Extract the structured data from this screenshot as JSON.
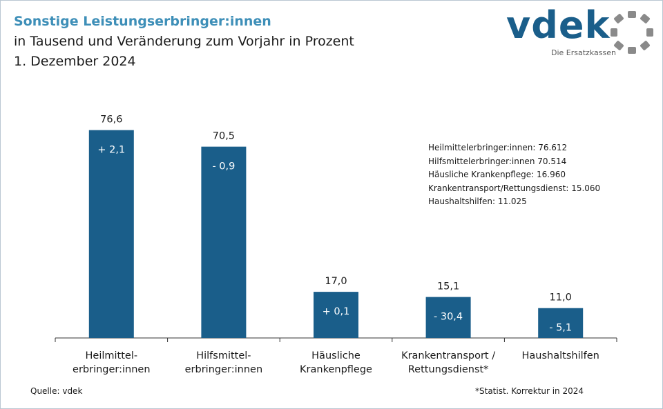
{
  "title": "Sonstige Leistungserbringer:innen",
  "subtitle": "in Tausend und Veränderung zum Vorjahr in Prozent",
  "date": "1. Dezember 2024",
  "logo": {
    "text": "vdek",
    "tagline": "Die Ersatzkassen"
  },
  "chart_data": {
    "type": "bar",
    "title": "Sonstige Leistungserbringer:innen",
    "xlabel": "",
    "ylabel": "",
    "ylim": [
      0,
      80
    ],
    "grid": false,
    "categories": [
      [
        "Heilmittel-",
        "erbringer:innen"
      ],
      [
        "Hilfsmittel-",
        "erbringer:innen"
      ],
      [
        "Häusliche",
        "Krankenpflege"
      ],
      [
        "Krankentransport /",
        "Rettungsdienst*"
      ],
      [
        "Haushaltshilfen"
      ]
    ],
    "values": [
      76.6,
      70.5,
      17.0,
      15.1,
      11.0
    ],
    "value_labels": [
      "76,6",
      "70,5",
      "17,0",
      "15,1",
      "11,0"
    ],
    "change_labels": [
      "+ 2,1",
      "- 0,9",
      "+ 0,1",
      "- 30,4",
      "- 5,1"
    ],
    "bar_color": "#1a5e8a"
  },
  "info_box": [
    "Heilmittelerbringer:innen: 76.612",
    "Hilfsmittelerbringer:innen 70.514",
    "Häusliche Krankenpflege: 16.960",
    "Krankentransport/Rettungsdienst: 15.060",
    "Haushaltshilfen: 11.025"
  ],
  "footer": {
    "source": "Quelle: vdek",
    "note": "*Statist. Korrektur in 2024"
  },
  "colors": {
    "title": "#3e8fb8",
    "bars": "#1a5e8a",
    "logo": "#1a5e8a",
    "logo_ring": "#8a8a8a"
  }
}
